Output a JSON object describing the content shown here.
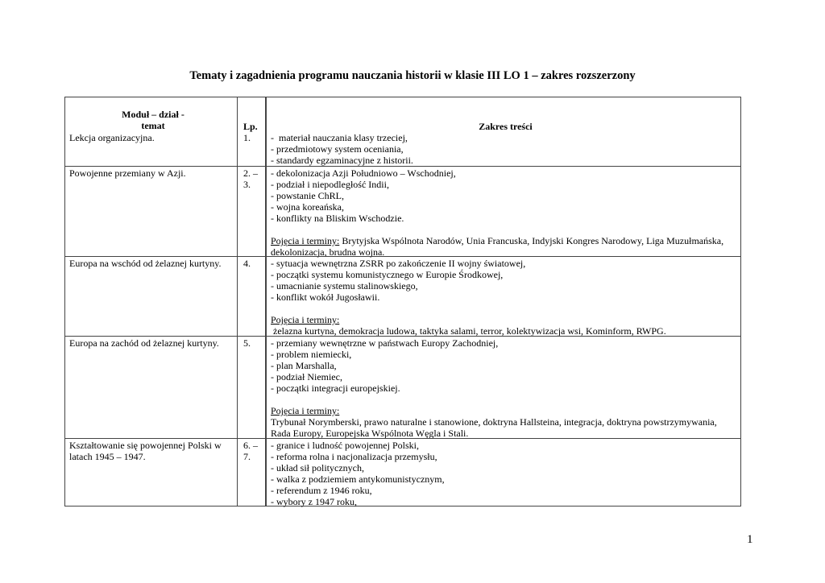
{
  "title": "Tematy i zagadnienia programu nauczania historii w klasie III LO 1 – zakres rozszerzony",
  "page_number": "1",
  "table": {
    "headers": {
      "module": [
        "Moduł – dział -",
        "temat"
      ],
      "lp": "Lp.",
      "content": "Zakres treści"
    },
    "rows": [
      {
        "topic": [
          "Lekcja organizacyjna."
        ],
        "lp": [
          "1."
        ],
        "lines": [
          {
            "t": "-  materiał nauczania klasy trzeciej,"
          },
          {
            "t": "- przedmiotowy system oceniania,"
          },
          {
            "t": "- standardy egzaminacyjne z historii."
          }
        ]
      },
      {
        "topic": [
          "Powojenne przemiany w Azji."
        ],
        "lp": [
          "2. –",
          "3."
        ],
        "lines": [
          {
            "t": "- dekolonizacja Azji Południowo – Wschodniej,"
          },
          {
            "t": "- podział i niepodległość Indii,"
          },
          {
            "t": "- powstanie ChRL,"
          },
          {
            "t": "- wojna koreańska,"
          },
          {
            "t": "- konflikty na Bliskim Wschodzie."
          },
          {
            "t": ""
          },
          {
            "u": "Pojęcia i terminy:",
            "t": " Brytyjska Wspólnota Narodów, Unia Francuska, Indyjski Kongres Narodowy, Liga Muzułmańska,"
          },
          {
            "t": "dekolonizacja, brudna wojna."
          }
        ]
      },
      {
        "topic": [
          "Europa na wschód od żelaznej kurtyny."
        ],
        "lp": [
          "4."
        ],
        "lines": [
          {
            "t": "- sytuacja wewnętrzna ZSRR po zakończenie II wojny światowej,"
          },
          {
            "t": "- początki systemu komunistycznego w Europie Środkowej,"
          },
          {
            "t": "- umacnianie systemu stalinowskiego,"
          },
          {
            "t": "- konflikt wokół Jugosławii."
          },
          {
            "t": ""
          },
          {
            "u": "Pojęcia i terminy:",
            "t": ""
          },
          {
            "t": " żelazna kurtyna, demokracja ludowa, taktyka salami, terror, kolektywizacja wsi, Kominform, RWPG."
          }
        ]
      },
      {
        "topic": [
          "Europa na zachód od żelaznej kurtyny."
        ],
        "lp": [
          "5."
        ],
        "lines": [
          {
            "t": "- przemiany wewnętrzne w państwach Europy Zachodniej,"
          },
          {
            "t": "- problem niemiecki,"
          },
          {
            "t": "- plan Marshalla,"
          },
          {
            "t": "- podział Niemiec,"
          },
          {
            "t": "- początki integracji europejskiej."
          },
          {
            "t": ""
          },
          {
            "u": "Pojęcia i terminy:",
            "t": ""
          },
          {
            "t": "Trybunał Norymberski, prawo naturalne i stanowione, doktryna Hallsteina, integracja, doktryna powstrzymywania,"
          },
          {
            "t": "Rada Europy, Europejska Wspólnota Węgla i Stali."
          }
        ]
      },
      {
        "topic": [
          "Kształtowanie się powojennej Polski w",
          "latach 1945 – 1947."
        ],
        "lp": [
          "6. –",
          "7."
        ],
        "lines": [
          {
            "t": "- granice i ludność powojennej Polski,"
          },
          {
            "t": "- reforma rolna i nacjonalizacja przemysłu,"
          },
          {
            "t": "- układ sił politycznych,"
          },
          {
            "t": "- walka z podziemiem antykomunistycznym,"
          },
          {
            "t": "- referendum z 1946 roku,"
          },
          {
            "t": "- wybory z 1947 roku,"
          }
        ]
      }
    ]
  }
}
